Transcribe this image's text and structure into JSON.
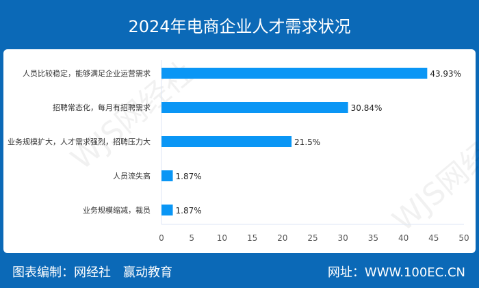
{
  "header": {
    "title": "2024年电商企业人才需求状况"
  },
  "footer": {
    "left": "图表编制：网经社　赢动教育",
    "right": "网址：WWW.100EC.CN"
  },
  "watermark": "WJS网经社",
  "colors": {
    "bar": "#0a96f5",
    "header": "#0b69b7"
  },
  "chart_data": {
    "type": "bar",
    "orientation": "horizontal",
    "title": "2024年电商企业人才需求状况",
    "categories": [
      "人员比较稳定，能够满足企业运营需求",
      "招聘常态化，每月有招聘需求",
      "业务规模扩大，人才需求强烈，招聘压力大",
      "人员流失高",
      "业务规模缩减，裁员"
    ],
    "values": [
      43.93,
      30.84,
      21.5,
      1.87,
      1.87
    ],
    "labels": [
      "43.93%",
      "30.84%",
      "21.5%",
      "1.87%",
      "1.87%"
    ],
    "xlim": [
      0,
      50
    ],
    "xticks": [
      0,
      5,
      10,
      15,
      20,
      25,
      30,
      35,
      40,
      45,
      50
    ],
    "grid": false
  }
}
